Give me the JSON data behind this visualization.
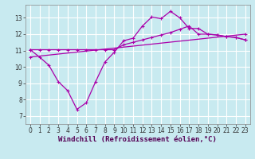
{
  "bg_color": "#c8eaf0",
  "grid_color": "#b0d8e0",
  "line_color": "#aa00aa",
  "line_width": 0.9,
  "marker": "P",
  "marker_size": 2.5,
  "xlabel": "Windchill (Refroidissement éolien,°C)",
  "xlabel_fontsize": 6.5,
  "tick_fontsize": 5.5,
  "xlim": [
    -0.5,
    23.5
  ],
  "ylim": [
    6.5,
    13.8
  ],
  "yticks": [
    7,
    8,
    9,
    10,
    11,
    12,
    13
  ],
  "xticks": [
    0,
    1,
    2,
    3,
    4,
    5,
    6,
    7,
    8,
    9,
    10,
    11,
    12,
    13,
    14,
    15,
    16,
    17,
    18,
    19,
    20,
    21,
    22,
    23
  ],
  "line1_x": [
    0,
    1,
    2,
    3,
    4,
    5,
    6,
    7,
    8,
    9,
    10,
    11,
    12,
    13,
    14,
    15,
    16,
    17,
    18,
    19,
    20,
    21,
    22,
    23
  ],
  "line1_y": [
    11.05,
    11.05,
    11.05,
    11.05,
    11.05,
    11.05,
    11.05,
    11.05,
    11.05,
    11.05,
    11.35,
    11.5,
    11.65,
    11.8,
    11.95,
    12.1,
    12.3,
    12.5,
    12.0,
    12.0,
    11.95,
    11.85,
    11.8,
    11.65
  ],
  "line2_x": [
    0,
    1,
    2,
    3,
    4,
    5,
    6,
    7,
    8,
    9,
    10,
    11,
    12,
    13,
    14,
    15,
    16,
    17,
    18,
    19,
    20,
    21,
    22,
    23
  ],
  "line2_y": [
    11.05,
    10.6,
    10.1,
    9.1,
    8.55,
    7.4,
    7.8,
    9.1,
    10.3,
    10.9,
    11.6,
    11.75,
    12.5,
    13.05,
    12.95,
    13.4,
    13.0,
    12.35,
    12.35,
    12.0,
    11.95,
    11.85,
    11.8,
    11.65
  ],
  "line3_x": [
    0,
    23
  ],
  "line3_y": [
    10.6,
    12.0
  ]
}
